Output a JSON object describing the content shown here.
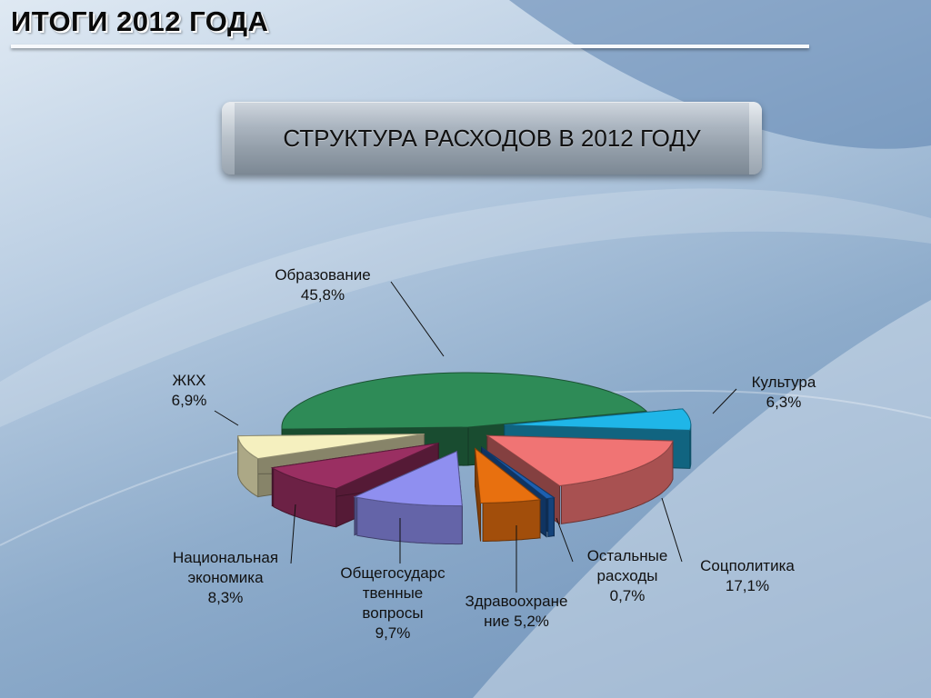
{
  "header": {
    "title": "ИТОГИ 2012 ГОДА"
  },
  "subtitle": {
    "text": "СТРУКТУРА РАСХОДОВ В 2012 ГОДУ"
  },
  "chart_data": {
    "type": "pie",
    "title": "",
    "categories": [
      "Образование",
      "Культура",
      "Соцполитика",
      "Остальные расходы",
      "Здравоохранение",
      "Общегосударственные вопросы",
      "Национальная экономика",
      "ЖКХ"
    ],
    "values": [
      45.8,
      6.3,
      17.1,
      0.7,
      5.2,
      9.7,
      8.3,
      6.9
    ],
    "labels": [
      [
        "Образование",
        "45,8%"
      ],
      [
        "Культура",
        "6,3%"
      ],
      [
        "Соцполитика",
        "17,1%"
      ],
      [
        "Остальные",
        "расходы",
        "0,7%"
      ],
      [
        "Здравоохране",
        "ние 5,2%"
      ],
      [
        "Общегосударс",
        "твенные",
        "вопросы",
        "9,7%"
      ],
      [
        "Национальная",
        "экономика",
        "8,3%"
      ],
      [
        "ЖКХ",
        "6,9%"
      ]
    ],
    "colors": [
      "#2e8b57",
      "#1fb6e8",
      "#f07474",
      "#1d5fb0",
      "#e8700f",
      "#8f8ff0",
      "#9a2f62",
      "#f5f0bf"
    ],
    "legend": "none"
  }
}
